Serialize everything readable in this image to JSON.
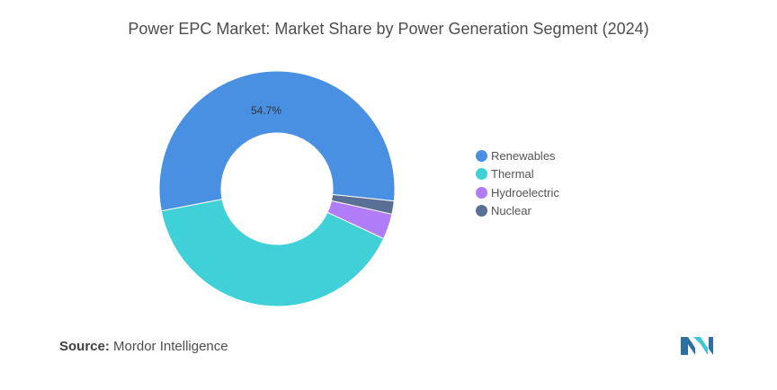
{
  "title": "Power EPC Market: Market Share by Power Generation Segment (2024)",
  "source": {
    "label": "Source:",
    "value": "Mordor Intelligence"
  },
  "logo": {
    "name": "mordor-intelligence-logo",
    "colors": [
      "#2e6fa3",
      "#3fc8d3"
    ]
  },
  "chart_data": {
    "type": "pie",
    "donut": true,
    "categories": [
      "Renewables",
      "Thermal",
      "Hydroelectric",
      "Nuclear"
    ],
    "values": [
      54.7,
      40.0,
      3.5,
      1.8
    ],
    "colors": [
      "#4a90e2",
      "#3fd0d8",
      "#b07cf7",
      "#5a6f95"
    ],
    "data_labels": [
      {
        "category": "Renewables",
        "text": "54.7%"
      }
    ],
    "legend_position": "right"
  }
}
